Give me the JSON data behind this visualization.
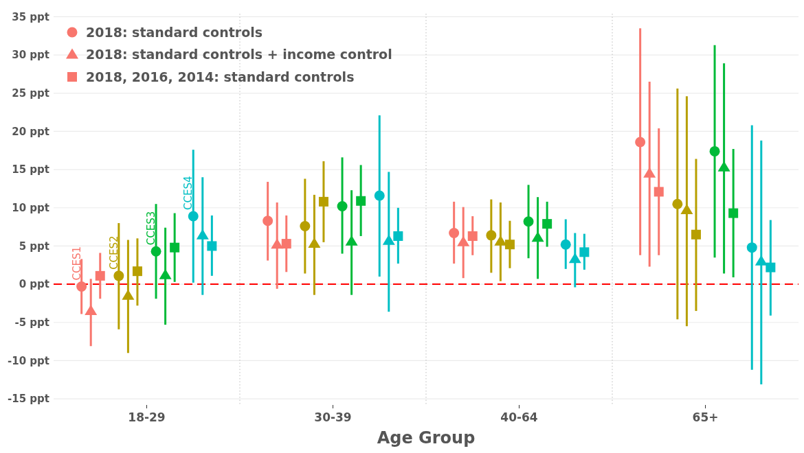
{
  "chart_data": {
    "type": "scatter",
    "xlabel": "Age Group",
    "categories": [
      "18-29",
      "30-39",
      "40-64",
      "65+"
    ],
    "ylim": [
      -15.8,
      35.4
    ],
    "yticks": [
      {
        "value": -15,
        "label": "-15 ppt"
      },
      {
        "value": -10,
        "label": "-10 ppt"
      },
      {
        "value": -5,
        "label": "-5 ppt"
      },
      {
        "value": 0,
        "label": "0 ppt"
      },
      {
        "value": 5,
        "label": "5 ppt"
      },
      {
        "value": 10,
        "label": "10 ppt"
      },
      {
        "value": 15,
        "label": "15 ppt"
      },
      {
        "value": 20,
        "label": "20 ppt"
      },
      {
        "value": 25,
        "label": "25 ppt"
      },
      {
        "value": 30,
        "label": "30 ppt"
      },
      {
        "value": 35,
        "label": "35 ppt"
      }
    ],
    "grid": true,
    "legend": "top left",
    "ref_lines": [
      {
        "axis": "y",
        "value": 0,
        "color": "#ff0000",
        "line_style": "dashed"
      }
    ],
    "annotations": [
      "CCES1",
      "CCES2",
      "CCES3",
      "CCES4"
    ],
    "series": [
      {
        "name": "2018: standard controls",
        "color": "#f8766d",
        "marker": "circle",
        "values": [
          -0.3,
          8.3,
          6.7,
          18.6
        ],
        "errors": [
          [
            -3.9,
            3.3
          ],
          [
            3.1,
            13.4
          ],
          [
            2.7,
            10.8
          ],
          [
            3.8,
            33.5
          ]
        ]
      },
      {
        "name": "2018: standard controls + income control",
        "color": "#f8766d",
        "marker": "triangle",
        "values": [
          -3.5,
          5.2,
          5.5,
          14.5
        ],
        "errors": [
          [
            -8.1,
            0.7
          ],
          [
            -0.6,
            10.7
          ],
          [
            0.8,
            10.1
          ],
          [
            2.3,
            26.5
          ]
        ]
      },
      {
        "name": "2018, 2016, 2014: standard controls",
        "color": "#f8766d",
        "marker": "square",
        "values": [
          1.1,
          5.3,
          6.3,
          12.1
        ],
        "errors": [
          [
            -1.9,
            4.1
          ],
          [
            1.6,
            9.0
          ],
          [
            3.8,
            8.9
          ],
          [
            3.8,
            20.4
          ]
        ]
      },
      {
        "color": "#b79f00",
        "marker": "circle",
        "values": [
          1.1,
          7.6,
          6.4,
          10.5
        ],
        "errors": [
          [
            -5.9,
            8.0
          ],
          [
            1.4,
            13.8
          ],
          [
            1.5,
            11.1
          ],
          [
            -4.6,
            25.6
          ]
        ]
      },
      {
        "color": "#b79f00",
        "marker": "triangle",
        "values": [
          -1.5,
          5.3,
          5.6,
          9.7
        ],
        "errors": [
          [
            -9.0,
            5.8
          ],
          [
            -1.4,
            11.7
          ],
          [
            0.4,
            10.7
          ],
          [
            -5.5,
            24.6
          ]
        ]
      },
      {
        "color": "#b79f00",
        "marker": "square",
        "values": [
          1.7,
          10.8,
          5.2,
          6.5
        ],
        "errors": [
          [
            -2.8,
            6.0
          ],
          [
            5.5,
            16.1
          ],
          [
            2.1,
            8.3
          ],
          [
            -3.5,
            16.4
          ]
        ]
      },
      {
        "color": "#00ba38",
        "marker": "circle",
        "values": [
          4.3,
          10.2,
          8.2,
          17.4
        ],
        "errors": [
          [
            -1.9,
            10.5
          ],
          [
            4.0,
            16.6
          ],
          [
            3.4,
            13.0
          ],
          [
            3.5,
            31.3
          ]
        ]
      },
      {
        "color": "#00ba38",
        "marker": "triangle",
        "values": [
          1.2,
          5.6,
          6.1,
          15.3
        ],
        "errors": [
          [
            -5.3,
            7.4
          ],
          [
            -1.4,
            12.3
          ],
          [
            0.7,
            11.4
          ],
          [
            1.4,
            28.9
          ]
        ]
      },
      {
        "color": "#00ba38",
        "marker": "square",
        "values": [
          4.8,
          10.9,
          7.9,
          9.3
        ],
        "errors": [
          [
            0.3,
            9.3
          ],
          [
            6.3,
            15.6
          ],
          [
            4.9,
            10.8
          ],
          [
            0.9,
            17.7
          ]
        ]
      },
      {
        "color": "#00bfc4",
        "marker": "circle",
        "values": [
          8.9,
          11.6,
          5.2,
          4.8
        ],
        "errors": [
          [
            0.2,
            17.6
          ],
          [
            1.0,
            22.1
          ],
          [
            2.0,
            8.5
          ],
          [
            -11.2,
            20.8
          ]
        ]
      },
      {
        "color": "#00bfc4",
        "marker": "triangle",
        "values": [
          6.4,
          5.7,
          3.3,
          3.0
        ],
        "errors": [
          [
            -1.4,
            14.0
          ],
          [
            -3.6,
            14.7
          ],
          [
            -0.4,
            6.7
          ],
          [
            -13.1,
            18.8
          ]
        ]
      },
      {
        "color": "#00bfc4",
        "marker": "square",
        "values": [
          5.0,
          6.3,
          4.2,
          2.2
        ],
        "errors": [
          [
            1.1,
            9.0
          ],
          [
            2.7,
            10.0
          ],
          [
            1.9,
            6.6
          ],
          [
            -4.1,
            8.4
          ]
        ]
      }
    ]
  }
}
